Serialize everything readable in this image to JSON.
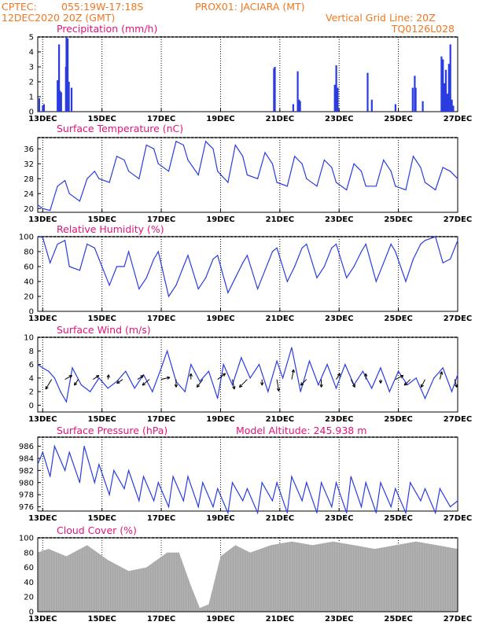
{
  "header": {
    "line1_left": "CPTEC:",
    "line1_coords": "055:19W-17:18S",
    "line1_station": "PROX01: JACIARA (MT)",
    "line2_date": "12DEC2020 20Z (GMT)",
    "line2_grid": "Vertical Grid Line: 20Z",
    "line3_code": "TQ0126L028"
  },
  "colors": {
    "header": "#f07820",
    "title": "#e0147c",
    "line": "#2a3ce0",
    "bar": "#2a3ce0",
    "cloud": "#a6a6a6"
  },
  "x_axis": {
    "start": 12.833,
    "end": 27.0,
    "labels": [
      {
        "day": 13,
        "label": "13DEC"
      },
      {
        "day": 15,
        "label": "15DEC"
      },
      {
        "day": 17,
        "label": "17DEC"
      },
      {
        "day": 19,
        "label": "19DEC"
      },
      {
        "day": 21,
        "label": "21DEC"
      },
      {
        "day": 23,
        "label": "23DEC"
      },
      {
        "day": 25,
        "label": "25DEC"
      },
      {
        "day": 27,
        "label": "27DEC"
      }
    ]
  },
  "panels": {
    "precip": {
      "title": "Precipitation (mm/h)",
      "yticks": [
        "0",
        "1",
        "2",
        "3",
        "4",
        "5"
      ]
    },
    "temp": {
      "title": "Surface Temperature (nC)",
      "yticks": [
        "20",
        "24",
        "28",
        "32",
        "36"
      ]
    },
    "rh": {
      "title": "Relative Humidity (%)",
      "yticks": [
        "0",
        "20",
        "40",
        "60",
        "80",
        "100"
      ]
    },
    "wind": {
      "title": "Surface Wind (m/s)",
      "yticks": [
        "0",
        "2",
        "4",
        "6",
        "8",
        "10"
      ]
    },
    "pres": {
      "title": "Surface Pressure (hPa)",
      "subtitle": "Model Altitude: 245.938  m",
      "yticks": [
        "976",
        "978",
        "980",
        "982",
        "984",
        "986"
      ]
    },
    "cloud": {
      "title": "Cloud Cover (%)",
      "yticks": [
        "0",
        "20",
        "40",
        "60",
        "80",
        "100"
      ]
    }
  },
  "chart_data": [
    {
      "type": "bar",
      "title": "Precipitation (mm/h)",
      "ylim": [
        0,
        5
      ],
      "x": [
        12.88,
        13.0,
        13.04,
        13.5,
        13.55,
        13.58,
        13.62,
        13.78,
        13.8,
        13.84,
        13.88,
        13.97,
        20.8,
        20.83,
        21.45,
        21.6,
        21.65,
        21.68,
        22.85,
        22.9,
        22.95,
        23.96,
        24.1,
        24.9,
        25.48,
        25.55,
        25.58,
        25.82,
        26.45,
        26.5,
        26.55,
        26.6,
        26.65,
        26.7,
        26.75,
        26.8,
        26.85
      ],
      "values": [
        0.9,
        0.4,
        0.5,
        2.1,
        4.5,
        1.4,
        1.3,
        3.0,
        5.0,
        4.9,
        2.0,
        1.6,
        2.9,
        3.0,
        0.5,
        2.7,
        0.8,
        0.7,
        1.8,
        3.1,
        1.6,
        2.6,
        0.8,
        0.5,
        1.6,
        2.4,
        1.6,
        0.7,
        3.7,
        3.5,
        1.9,
        2.8,
        1.2,
        3.2,
        4.5,
        0.8,
        0.4
      ]
    },
    {
      "type": "line",
      "title": "Surface Temperature (nC)",
      "ylim": [
        19,
        39
      ],
      "x": [
        12.83,
        13.0,
        13.25,
        13.5,
        13.75,
        13.9,
        14.25,
        14.5,
        14.75,
        14.9,
        15.25,
        15.5,
        15.75,
        15.9,
        16.25,
        16.5,
        16.75,
        16.9,
        17.25,
        17.5,
        17.75,
        17.9,
        18.25,
        18.5,
        18.75,
        18.9,
        19.25,
        19.5,
        19.75,
        19.9,
        20.25,
        20.5,
        20.75,
        20.9,
        21.25,
        21.5,
        21.75,
        21.9,
        22.25,
        22.5,
        22.75,
        22.9,
        23.25,
        23.5,
        23.75,
        23.9,
        24.25,
        24.5,
        24.75,
        24.9,
        25.25,
        25.5,
        25.75,
        25.9,
        26.25,
        26.5,
        26.75,
        27.0
      ],
      "values": [
        21,
        20,
        19.5,
        26,
        27.5,
        24,
        22,
        28,
        30,
        28,
        27,
        34,
        33,
        30,
        28,
        37,
        36,
        32,
        30,
        38,
        37,
        33,
        29,
        38,
        36,
        30,
        27,
        37,
        34,
        29,
        28,
        35,
        32,
        27,
        26,
        34,
        32,
        28,
        26,
        33,
        31,
        27,
        25,
        32,
        30,
        26,
        26,
        33,
        30,
        26,
        25,
        34,
        31,
        27,
        25,
        31,
        30,
        28
      ]
    },
    {
      "type": "line",
      "title": "Relative Humidity (%)",
      "ylim": [
        0,
        100
      ],
      "x": [
        12.83,
        13.0,
        13.25,
        13.5,
        13.75,
        13.9,
        14.25,
        14.5,
        14.75,
        14.9,
        15.25,
        15.5,
        15.75,
        15.9,
        16.25,
        16.5,
        16.75,
        16.9,
        17.25,
        17.5,
        17.75,
        17.9,
        18.25,
        18.5,
        18.75,
        18.9,
        19.25,
        19.5,
        19.75,
        19.9,
        20.25,
        20.5,
        20.75,
        20.9,
        21.25,
        21.5,
        21.75,
        21.9,
        22.25,
        22.5,
        22.75,
        22.9,
        23.25,
        23.5,
        23.75,
        23.9,
        24.25,
        24.5,
        24.75,
        24.9,
        25.25,
        25.5,
        25.75,
        25.9,
        26.25,
        26.5,
        26.75,
        27.0
      ],
      "values": [
        100,
        99,
        65,
        90,
        95,
        60,
        55,
        90,
        85,
        70,
        35,
        60,
        60,
        80,
        30,
        45,
        70,
        80,
        20,
        35,
        60,
        75,
        30,
        45,
        70,
        75,
        25,
        45,
        65,
        75,
        30,
        55,
        80,
        85,
        40,
        60,
        85,
        90,
        45,
        60,
        85,
        90,
        45,
        60,
        80,
        90,
        40,
        65,
        90,
        80,
        40,
        70,
        90,
        95,
        100,
        65,
        70,
        95
      ]
    },
    {
      "type": "line",
      "title": "Surface Wind (m/s)",
      "ylim": [
        -1,
        10
      ],
      "x": [
        12.83,
        13.0,
        13.2,
        13.4,
        13.6,
        13.8,
        14.0,
        14.3,
        14.6,
        14.9,
        15.2,
        15.5,
        15.8,
        16.1,
        16.4,
        16.7,
        17.0,
        17.2,
        17.5,
        17.8,
        18.0,
        18.3,
        18.6,
        18.9,
        19.1,
        19.4,
        19.7,
        20.0,
        20.3,
        20.6,
        20.9,
        21.1,
        21.4,
        21.7,
        22.0,
        22.3,
        22.6,
        22.9,
        23.2,
        23.5,
        23.8,
        24.1,
        24.4,
        24.7,
        25.0,
        25.3,
        25.6,
        25.9,
        26.2,
        26.5,
        26.8,
        27.0
      ],
      "values": [
        6,
        5.5,
        5,
        4,
        2,
        0.5,
        5.5,
        3,
        2,
        4,
        2.5,
        3.5,
        5,
        2.5,
        4.5,
        2,
        5.5,
        8,
        3.5,
        2,
        6,
        3.5,
        5,
        1,
        6,
        3,
        7,
        4,
        6,
        2,
        6.5,
        4,
        8.5,
        2,
        6.5,
        3,
        6,
        2.5,
        6,
        3,
        5,
        2.5,
        5.5,
        2,
        5,
        3,
        4,
        1,
        4,
        5.5,
        2,
        4.5
      ]
    },
    {
      "type": "line",
      "title": "Surface Pressure (hPa)",
      "ylim": [
        975.3,
        987.5
      ],
      "x": [
        12.83,
        13.0,
        13.25,
        13.4,
        13.75,
        13.9,
        14.25,
        14.4,
        14.75,
        14.9,
        15.25,
        15.4,
        15.75,
        15.9,
        16.25,
        16.4,
        16.75,
        16.9,
        17.25,
        17.4,
        17.75,
        17.9,
        18.25,
        18.4,
        18.75,
        18.9,
        19.25,
        19.4,
        19.75,
        19.9,
        20.25,
        20.4,
        20.75,
        20.9,
        21.25,
        21.4,
        21.75,
        21.9,
        22.25,
        22.4,
        22.75,
        22.9,
        23.25,
        23.4,
        23.75,
        23.9,
        24.25,
        24.4,
        24.75,
        24.9,
        25.25,
        25.4,
        25.75,
        25.9,
        26.25,
        26.4,
        26.75,
        27.0
      ],
      "values": [
        983,
        985,
        981,
        986,
        982,
        985,
        980,
        986,
        980,
        983,
        978,
        982,
        979,
        982,
        977,
        981,
        977,
        980,
        976,
        981,
        977,
        981,
        976,
        980,
        976,
        979,
        975,
        980,
        977,
        979,
        975,
        980,
        977,
        980,
        975,
        981,
        977,
        980,
        975,
        980,
        976,
        980,
        975,
        981,
        976,
        980,
        975,
        980,
        976,
        979,
        975,
        980,
        977,
        979,
        975,
        979,
        976,
        977
      ]
    },
    {
      "type": "area",
      "title": "Cloud Cover (%)",
      "ylim": [
        0,
        100
      ],
      "x": [
        12.83,
        13.2,
        13.8,
        14.5,
        15.2,
        15.9,
        16.5,
        17.2,
        17.6,
        18.0,
        18.3,
        18.6,
        19.0,
        19.5,
        20.0,
        20.7,
        21.4,
        22.1,
        22.8,
        23.5,
        24.2,
        24.9,
        25.6,
        26.3,
        27.0
      ],
      "values": [
        80,
        85,
        75,
        90,
        70,
        55,
        60,
        80,
        80,
        35,
        5,
        10,
        75,
        90,
        80,
        90,
        95,
        90,
        95,
        90,
        85,
        90,
        95,
        90,
        85
      ]
    },
    {
      "type": "quiver",
      "title": "Surface Wind (m/s)",
      "x": [
        13.3,
        13.75,
        14.2,
        14.7,
        15.2,
        15.7,
        16.2,
        16.6,
        17.0,
        17.5,
        18.0,
        18.4,
        18.9,
        19.4,
        19.9,
        20.4,
        20.9,
        21.4,
        21.9,
        22.4,
        22.9,
        23.4,
        23.9,
        24.4,
        24.9,
        25.4,
        25.9,
        26.4,
        26.9
      ],
      "u": [
        -1.5,
        1.8,
        -1.0,
        1.5,
        0.2,
        -1.5,
        1.5,
        -1.8,
        2.2,
        0.0,
        0.0,
        -1.5,
        2.0,
        0.5,
        -2.0,
        0.0,
        0.5,
        0.5,
        -1.5,
        0.0,
        1.0,
        1.0,
        0.0,
        0.0,
        2.0,
        -1.5,
        -1.0,
        0.5,
        0.5
      ],
      "v": [
        -2.5,
        1.0,
        -1.5,
        1.0,
        1.2,
        -1.0,
        1.0,
        -1.5,
        0.5,
        -2.0,
        1.5,
        -2.0,
        1.5,
        -2.5,
        -2.0,
        -1.5,
        -3.0,
        2.5,
        -1.5,
        -2.0,
        1.5,
        -2.0,
        1.5,
        -1.0,
        1.0,
        -1.5,
        -2.0,
        2.0,
        -2.0
      ]
    }
  ]
}
